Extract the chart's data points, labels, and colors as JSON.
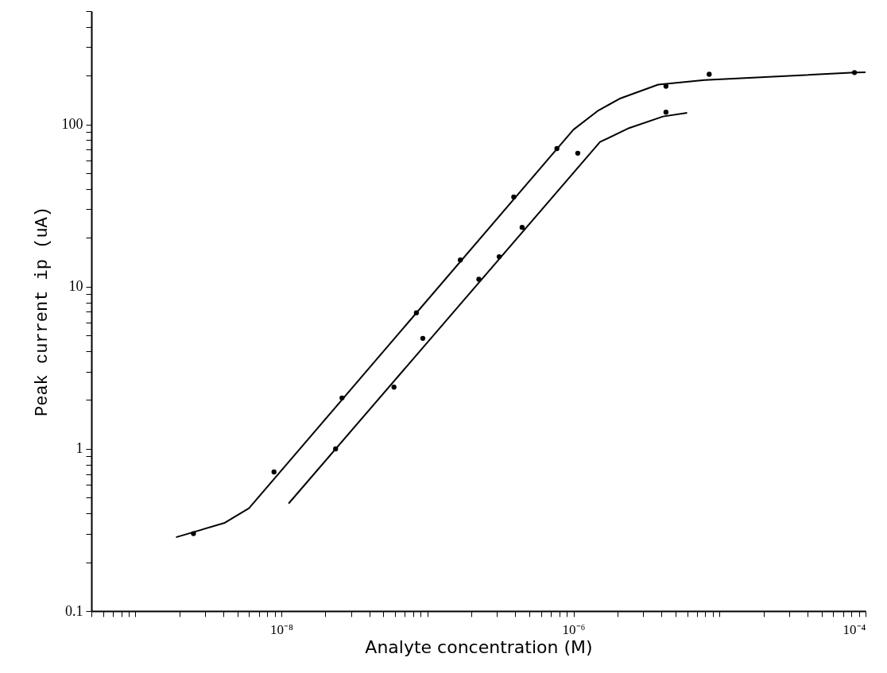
{
  "chart_data": {
    "type": "scatter",
    "xlabel": "Analyte concentration (M)",
    "ylabel": "Peak current ip (uA)",
    "log": "xy",
    "grid": false,
    "marker": "circle",
    "xlim": [
      5e-10,
      0.0001
    ],
    "ylim": [
      0.1,
      500
    ],
    "xticks": [
      {
        "value": 5e-10,
        "label": null
      },
      {
        "value": 6e-10,
        "label": null
      },
      {
        "value": 7e-10,
        "label": null
      },
      {
        "value": 8e-10,
        "label": null
      },
      {
        "value": 9e-10,
        "label": null
      },
      {
        "value": 1e-09,
        "label": null
      },
      {
        "value": 2e-09,
        "label": null
      },
      {
        "value": 3e-09,
        "label": null
      },
      {
        "value": 4e-09,
        "label": null
      },
      {
        "value": 5e-09,
        "label": null
      },
      {
        "value": 6e-09,
        "label": null
      },
      {
        "value": 7e-09,
        "label": null
      },
      {
        "value": 8e-09,
        "label": null
      },
      {
        "value": 9e-09,
        "label": null
      },
      {
        "value": 1e-08,
        "label": "10⁻⁸"
      },
      {
        "value": 2e-08,
        "label": null
      },
      {
        "value": 3e-08,
        "label": null
      },
      {
        "value": 4e-08,
        "label": null
      },
      {
        "value": 5e-08,
        "label": null
      },
      {
        "value": 6e-08,
        "label": null
      },
      {
        "value": 7e-08,
        "label": null
      },
      {
        "value": 8e-08,
        "label": null
      },
      {
        "value": 9e-08,
        "label": null
      },
      {
        "value": 1e-07,
        "label": null
      },
      {
        "value": 2e-07,
        "label": null
      },
      {
        "value": 3e-07,
        "label": null
      },
      {
        "value": 4e-07,
        "label": null
      },
      {
        "value": 5e-07,
        "label": null
      },
      {
        "value": 6e-07,
        "label": null
      },
      {
        "value": 7e-07,
        "label": null
      },
      {
        "value": 8e-07,
        "label": null
      },
      {
        "value": 9e-07,
        "label": null
      },
      {
        "value": 1e-06,
        "label": "10⁻⁶"
      },
      {
        "value": 2e-06,
        "label": null
      },
      {
        "value": 3e-06,
        "label": null
      },
      {
        "value": 4e-06,
        "label": null
      },
      {
        "value": 5e-06,
        "label": null
      },
      {
        "value": 6e-06,
        "label": null
      },
      {
        "value": 7e-06,
        "label": null
      },
      {
        "value": 8e-06,
        "label": null
      },
      {
        "value": 9e-06,
        "label": null
      },
      {
        "value": 1e-05,
        "label": null
      },
      {
        "value": 2e-05,
        "label": null
      },
      {
        "value": 3e-05,
        "label": null
      },
      {
        "value": 4e-05,
        "label": null
      },
      {
        "value": 5e-05,
        "label": null
      },
      {
        "value": 6e-05,
        "label": null
      },
      {
        "value": 7e-05,
        "label": null
      },
      {
        "value": 8e-05,
        "label": null
      },
      {
        "value": 9e-05,
        "label": null
      },
      {
        "value": 0.0001,
        "label": "10⁻⁴"
      }
    ],
    "yticks": [
      0.1,
      {
        "value": 0.2,
        "label": null
      },
      {
        "value": 0.3,
        "label": null
      },
      {
        "value": 0.4,
        "label": null
      },
      {
        "value": 0.5,
        "label": null
      },
      {
        "value": 0.6,
        "label": null
      },
      {
        "value": 0.7,
        "label": null
      },
      {
        "value": 0.8,
        "label": null
      },
      {
        "value": 0.9,
        "label": null
      },
      1,
      {
        "value": 2,
        "label": null
      },
      {
        "value": 3,
        "label": null
      },
      {
        "value": 4,
        "label": null
      },
      {
        "value": 5,
        "label": null
      },
      {
        "value": 6,
        "label": null
      },
      {
        "value": 7,
        "label": null
      },
      {
        "value": 8,
        "label": null
      },
      {
        "value": 9,
        "label": null
      },
      10,
      {
        "value": 20,
        "label": null
      },
      {
        "value": 30,
        "label": null
      },
      {
        "value": 40,
        "label": null
      },
      {
        "value": 50,
        "label": null
      },
      {
        "value": 60,
        "label": null
      },
      {
        "value": 70,
        "label": null
      },
      {
        "value": 80,
        "label": null
      },
      {
        "value": 90,
        "label": null
      },
      100,
      {
        "value": 200,
        "label": null
      },
      {
        "value": 300,
        "label": null
      },
      {
        "value": 400,
        "label": null
      },
      {
        "value": 500,
        "label": null
      }
    ],
    "series": [
      {
        "type": "line",
        "marker": "none",
        "color": "#000000",
        "x": [
          1.9e-09,
          4.1e-09,
          6e-09,
          1e-06,
          1.48e-06,
          2.1e-06,
          3.8e-06,
          7.9e-06,
          8.4e-05,
          0.0001
        ],
        "values": [
          0.285,
          0.35,
          0.43,
          93,
          122,
          145,
          176,
          188,
          209,
          210
        ]
      },
      {
        "type": "line",
        "marker": "none",
        "color": "#000000",
        "x": [
          1.12e-08,
          1.52e-06,
          2.4e-06,
          4.1e-06,
          6e-06
        ],
        "values": [
          0.46,
          78,
          95,
          112,
          118
        ]
      },
      {
        "color": "#000000",
        "x": [
          2.5e-09,
          8.9e-09,
          2.6e-08,
          8.4e-08,
          1.68e-07,
          3.9e-07,
          7.7e-07,
          4.3e-06,
          8.5e-06,
          8.4e-05
        ],
        "values": [
          0.3,
          0.72,
          2.06,
          6.9,
          14.6,
          35.7,
          71,
          172,
          204,
          209
        ]
      },
      {
        "color": "#000000",
        "x": [
          2.35e-08,
          5.9e-08,
          9.3e-08,
          2.25e-07,
          3.1e-07,
          4.45e-07,
          1.07e-06,
          4.3e-06
        ],
        "values": [
          1.0,
          2.4,
          4.8,
          11.1,
          15.3,
          23.2,
          66.5,
          119
        ]
      }
    ]
  }
}
